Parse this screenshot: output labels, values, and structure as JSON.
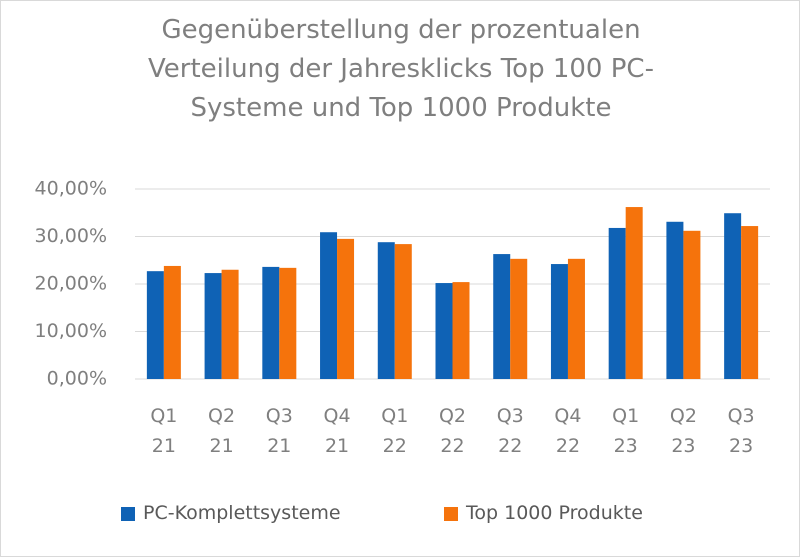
{
  "chart_data": {
    "type": "bar",
    "title": "Gegenüberstellung der prozentualen Verteilung der Jahresklicks Top 100 PC-Systeme und Top 1000 Produkte",
    "categories": [
      "Q1 21",
      "Q2 21",
      "Q3 21",
      "Q4 21",
      "Q1 22",
      "Q2 22",
      "Q3 22",
      "Q4 22",
      "Q1 23",
      "Q2 23",
      "Q3 23"
    ],
    "series": [
      {
        "name": "PC-Komplettsysteme",
        "color": "#0f62b5",
        "values": [
          22.7,
          22.3,
          23.6,
          30.9,
          28.8,
          20.2,
          26.3,
          24.2,
          31.8,
          33.1,
          34.9
        ]
      },
      {
        "name": "Top 1000 Produkte",
        "color": "#f5730c",
        "values": [
          23.8,
          23.0,
          23.4,
          29.5,
          28.4,
          20.4,
          25.3,
          25.3,
          36.2,
          31.2,
          32.2
        ]
      }
    ],
    "ylim": [
      0,
      40
    ],
    "yticks": [
      {
        "value": 0,
        "label": "0,00%"
      },
      {
        "value": 10,
        "label": "10,00%"
      },
      {
        "value": 20,
        "label": "20,00%"
      },
      {
        "value": 30,
        "label": "30,00%"
      },
      {
        "value": 40,
        "label": "40,00%"
      }
    ],
    "grid": true,
    "legend": "bottom"
  }
}
